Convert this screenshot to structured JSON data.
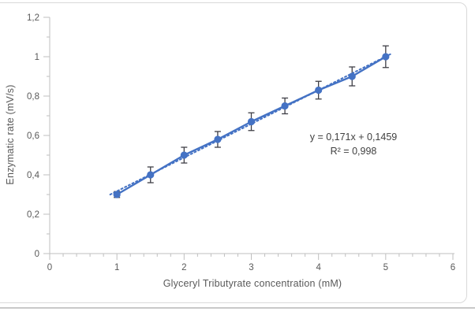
{
  "chart_data": {
    "type": "scatter",
    "x": [
      1,
      1.5,
      2,
      2.5,
      3,
      3.5,
      4,
      4.5,
      5
    ],
    "y": [
      0.3,
      0.4,
      0.5,
      0.58,
      0.67,
      0.75,
      0.83,
      0.9,
      1.0
    ],
    "y_err": [
      0.015,
      0.04,
      0.04,
      0.04,
      0.045,
      0.04,
      0.045,
      0.048,
      0.055
    ],
    "title": "",
    "xlabel": "Glyceryl Tributyrate concentration (mM)",
    "ylabel": "Enzymatic rate (mV/s)",
    "xlim": [
      0,
      6
    ],
    "ylim": [
      0,
      1.2
    ],
    "x_tick_values": [
      0,
      1,
      2,
      3,
      4,
      5,
      6
    ],
    "x_tick_labels": [
      "0",
      "1",
      "2",
      "3",
      "4",
      "5",
      "6"
    ],
    "x_minor_step": 0.2,
    "y_tick_values": [
      0,
      0.2,
      0.4,
      0.6,
      0.8,
      1,
      1.2
    ],
    "y_tick_labels": [
      "0",
      "0,2",
      "0,4",
      "0,6",
      "0,8",
      "1",
      "1,2"
    ],
    "y_minor_step": 0.1,
    "grid": false,
    "legend": false,
    "marker": "circle",
    "line": "solid",
    "trendline": {
      "slope": 0.171,
      "intercept": 0.1459,
      "x_start": 0.9,
      "x_end": 5.08,
      "style": "dotted",
      "equation": "y = 0,171x + 0,1459",
      "r_squared": "R² = 0,998"
    },
    "colors": {
      "series": "#4472C4",
      "error_bar": "#3F3F46",
      "axis": "#BFBFBF",
      "tick_text": "#595959",
      "annotation_text": "#404040",
      "frame_border": "#D9D9D9",
      "divider": "#C9C9C9"
    }
  }
}
